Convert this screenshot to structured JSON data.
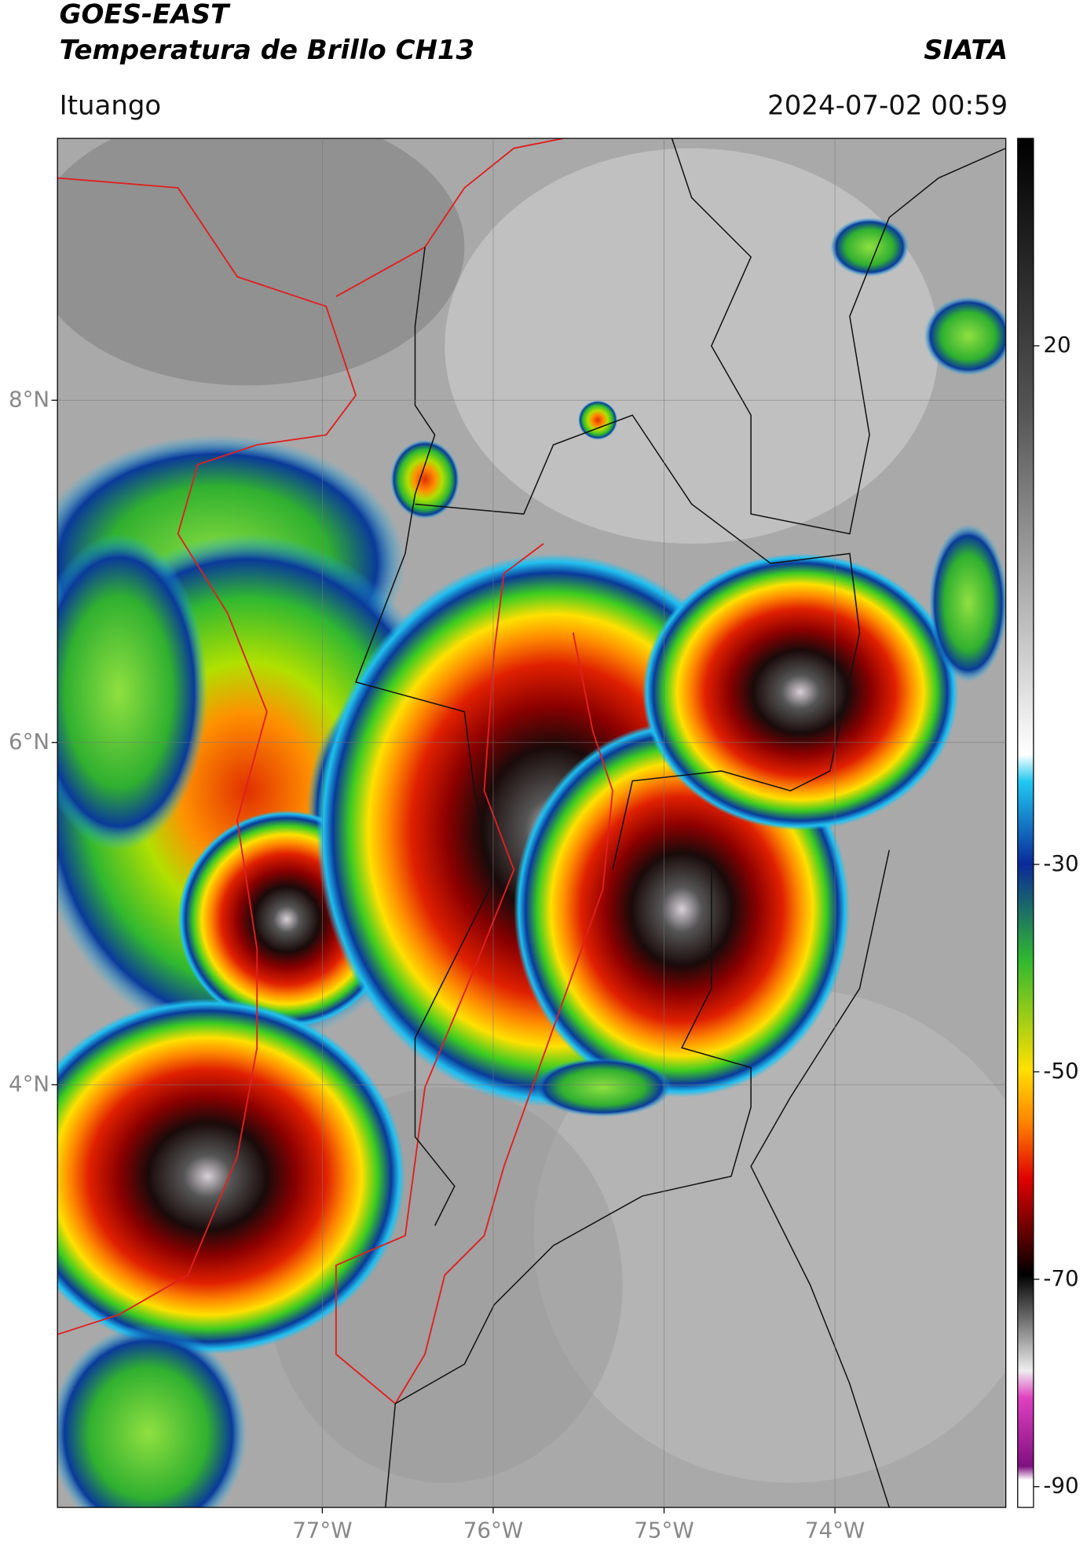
{
  "header": {
    "title": "GOES-EAST",
    "subtitle": "Temperatura de Brillo CH13",
    "brand": "SIATA",
    "location": "Ituango",
    "timestamp": "2024-07-02 00:59"
  },
  "map": {
    "latlim": [
      1.53,
      9.53
    ],
    "lonlim": [
      -78.55,
      -73.0
    ],
    "lat_ticks": [
      {
        "value": 8,
        "label": "8°N"
      },
      {
        "value": 6,
        "label": "6°N"
      },
      {
        "value": 4,
        "label": "4°N"
      }
    ],
    "lon_ticks": [
      {
        "value": -77,
        "label": "77°W"
      },
      {
        "value": -76,
        "label": "76°W"
      },
      {
        "value": -75,
        "label": "75°W"
      },
      {
        "value": -74,
        "label": "74°W"
      }
    ]
  },
  "colorbar": {
    "lim": [
      -92,
      40
    ],
    "ticks": [
      20,
      -30,
      -50,
      -70,
      -90
    ]
  }
}
